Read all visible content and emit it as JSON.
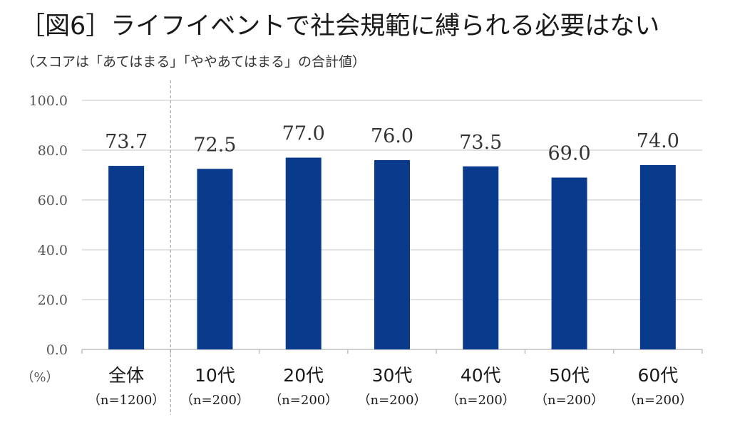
{
  "title": "［図6］ライフイベントで社会規範に縛られる必要はない",
  "subtitle": "（スコアは「あてはまる」「ややあてはまる」の合計値）",
  "chart_data": {
    "type": "bar",
    "categories": [
      "全体",
      "10代",
      "20代",
      "30代",
      "40代",
      "50代",
      "60代"
    ],
    "category_sublabels": [
      "（n=1200）",
      "（n=200）",
      "（n=200）",
      "（n=200）",
      "（n=200）",
      "（n=200）",
      "（n=200）"
    ],
    "values": [
      73.7,
      72.5,
      77.0,
      76.0,
      73.5,
      69.0,
      74.0
    ],
    "value_labels": [
      "73.7",
      "72.5",
      "77.0",
      "76.0",
      "73.5",
      "69.0",
      "74.0"
    ],
    "yticks": [
      "0.0",
      "20.0",
      "40.0",
      "60.0",
      "80.0",
      "100.0"
    ],
    "ylim": [
      0,
      100
    ],
    "y_unit": "（%）",
    "grid": true,
    "bar_color": "#0a3a8c",
    "grid_color": "#d9d9d9",
    "divider_after_first_category": true
  }
}
